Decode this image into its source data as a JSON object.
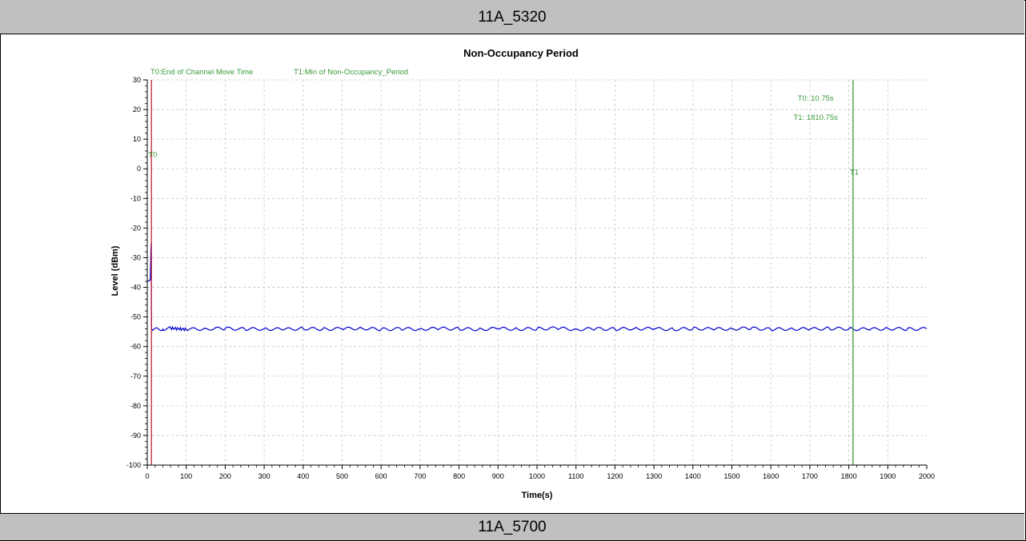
{
  "header": {
    "title": "11A_5320"
  },
  "footer": {
    "title": "11A_5700"
  },
  "chart_data": {
    "type": "line",
    "title": "Non-Occupancy Period",
    "xlabel": "Time(s)",
    "ylabel": "Level (dBm)",
    "xlim": [
      0,
      2000
    ],
    "ylim": [
      -100,
      30
    ],
    "x_ticks": [
      0,
      100,
      200,
      300,
      400,
      500,
      600,
      700,
      800,
      900,
      1000,
      1100,
      1200,
      1300,
      1400,
      1500,
      1600,
      1700,
      1800,
      1900,
      2000
    ],
    "y_ticks": [
      30,
      20,
      10,
      0,
      -10,
      -20,
      -30,
      -40,
      -50,
      -60,
      -70,
      -80,
      -90,
      -100
    ],
    "grid": true,
    "legend": [
      {
        "text": "T0:End of Channel Move Time",
        "color": "#3a9a3a"
      },
      {
        "text": "T1:Min of Non-Occupancy_Period",
        "color": "#3a9a3a"
      }
    ],
    "markers": [
      {
        "label": "T0",
        "x": 10.75,
        "color": "#c8203a",
        "label_y": 4
      },
      {
        "label": "T1",
        "x": 1810.75,
        "color": "#3a9a3a",
        "label_y": -2
      }
    ],
    "annotations": [
      {
        "text": "T0: 10.75s",
        "x": 1715,
        "y": 23
      },
      {
        "text": "T1: 1810.75s",
        "x": 1715,
        "y": 16.5
      }
    ],
    "series": [
      {
        "color": "#0000cc",
        "x": [
          0,
          1,
          3,
          5,
          7,
          8,
          9,
          10,
          10.5,
          11,
          12,
          40,
          60,
          100,
          150,
          200,
          250,
          300,
          350,
          400,
          450,
          500,
          550,
          600,
          650,
          700,
          750,
          800,
          850,
          900,
          950,
          1000,
          1050,
          1100,
          1150,
          1200,
          1250,
          1300,
          1350,
          1400,
          1450,
          1500,
          1550,
          1600,
          1650,
          1700,
          1750,
          1800,
          1850,
          1900,
          1950,
          2000
        ],
        "y": [
          -37.5,
          -37.8,
          -37.9,
          -37.8,
          -37.6,
          -37,
          -30,
          -25,
          -40,
          -54,
          -54.2,
          -54.1,
          -53.8,
          -54.2,
          -54,
          -53.9,
          -54.1,
          -54,
          -54.2,
          -53.9,
          -54.1,
          -54,
          -53.8,
          -54.2,
          -54,
          -54.1,
          -53.9,
          -54,
          -54.2,
          -53.9,
          -54.1,
          -54,
          -53.8,
          -54.2,
          -54,
          -54.1,
          -53.9,
          -54,
          -54.2,
          -53.9,
          -54.1,
          -54,
          -53.8,
          -54.2,
          -54,
          -54.1,
          -53.9,
          -54,
          -54.2,
          -53.9,
          -54.1,
          -54
        ]
      }
    ]
  }
}
